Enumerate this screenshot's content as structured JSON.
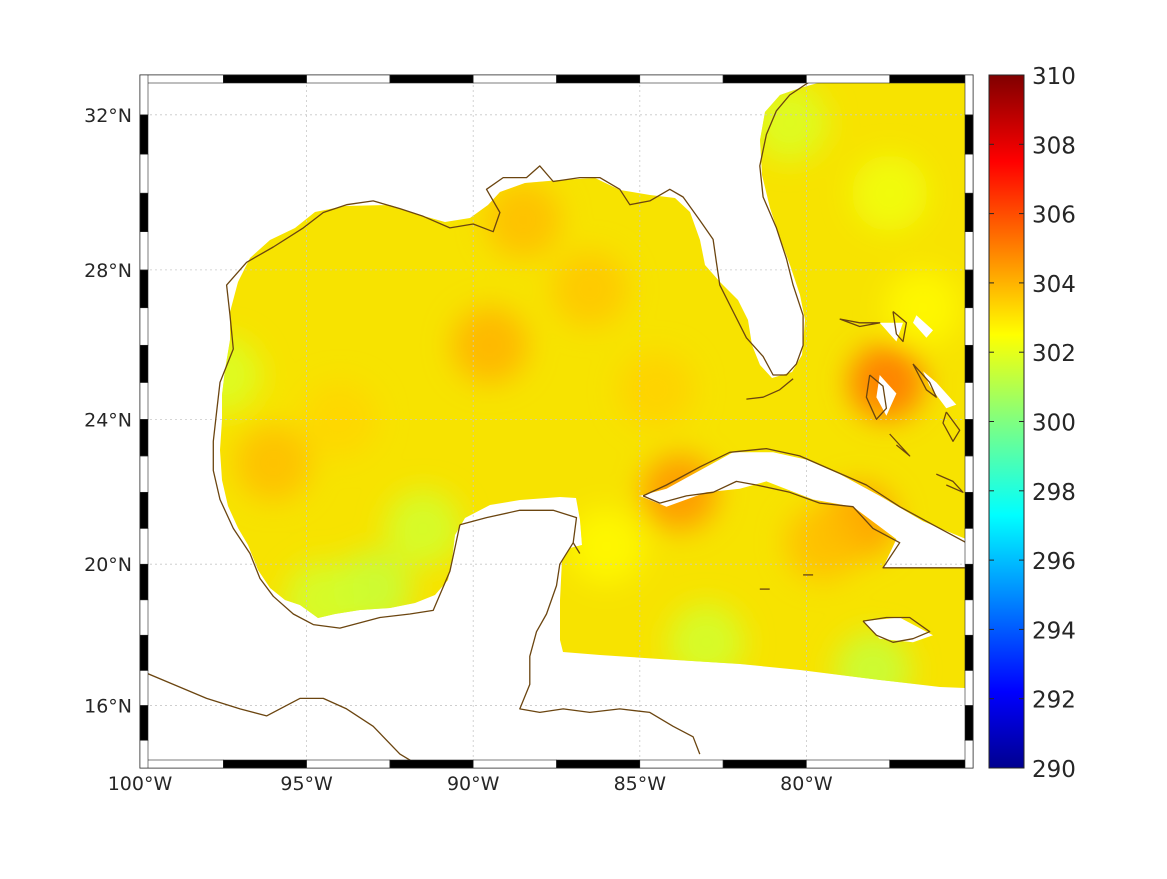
{
  "map": {
    "projection": "Mercator",
    "lon_range": [
      -100,
      -75
    ],
    "lat_range": [
      14.2,
      33
    ],
    "lon_ticks": [
      {
        "value": -100,
        "label": "100°W"
      },
      {
        "value": -95,
        "label": "95°W"
      },
      {
        "value": -90,
        "label": "90°W"
      },
      {
        "value": -85,
        "label": "85°W"
      },
      {
        "value": -80,
        "label": "80°W"
      }
    ],
    "lat_ticks": [
      {
        "value": 16,
        "label": "16°N"
      },
      {
        "value": 20,
        "label": "20°N"
      },
      {
        "value": 24,
        "label": "24°N"
      },
      {
        "value": 28,
        "label": "28°N"
      },
      {
        "value": 32,
        "label": "32°N"
      }
    ],
    "gridlines": true,
    "coastline_color": "#6b4510",
    "field_description": "sea surface temperature field over Gulf of Mexico and Caribbean, mostly 302-304"
  },
  "colorbar": {
    "colormap": "jet",
    "min": 290,
    "max": 310,
    "ticks": [
      {
        "value": 310,
        "label": "310"
      },
      {
        "value": 308,
        "label": "308"
      },
      {
        "value": 306,
        "label": "306"
      },
      {
        "value": 304,
        "label": "304"
      },
      {
        "value": 302,
        "label": "302"
      },
      {
        "value": 300,
        "label": "300"
      },
      {
        "value": 298,
        "label": "298"
      },
      {
        "value": 296,
        "label": "296"
      },
      {
        "value": 294,
        "label": "294"
      },
      {
        "value": 292,
        "label": "292"
      },
      {
        "value": 290,
        "label": "290"
      }
    ]
  },
  "sst_anomaly_spots": [
    {
      "lon": -89.5,
      "lat": 26.0,
      "value": 304.0
    },
    {
      "lon": -88.5,
      "lat": 29.3,
      "value": 303.8
    },
    {
      "lon": -86.5,
      "lat": 27.5,
      "value": 303.6
    },
    {
      "lon": -96.0,
      "lat": 22.8,
      "value": 303.8
    },
    {
      "lon": -94.0,
      "lat": 24.0,
      "value": 303.3
    },
    {
      "lon": -84.5,
      "lat": 24.8,
      "value": 303.4
    },
    {
      "lon": -83.8,
      "lat": 22.0,
      "value": 304.6
    },
    {
      "lon": -77.6,
      "lat": 25.0,
      "value": 305.2
    },
    {
      "lon": -78.4,
      "lat": 21.2,
      "value": 304.4
    },
    {
      "lon": -79.5,
      "lat": 20.6,
      "value": 303.8
    },
    {
      "lon": -91.5,
      "lat": 21.0,
      "value": 301.6
    },
    {
      "lon": -93.0,
      "lat": 19.3,
      "value": 301.4
    },
    {
      "lon": -94.5,
      "lat": 19.0,
      "value": 301.6
    },
    {
      "lon": -97.5,
      "lat": 25.2,
      "value": 301.8
    },
    {
      "lon": -83.0,
      "lat": 17.8,
      "value": 301.6
    },
    {
      "lon": -78.0,
      "lat": 17.0,
      "value": 301.4
    },
    {
      "lon": -80.5,
      "lat": 31.8,
      "value": 301.8
    },
    {
      "lon": -77.5,
      "lat": 30.0,
      "value": 302.2
    },
    {
      "lon": -76.5,
      "lat": 27.0,
      "value": 302.6
    },
    {
      "lon": -86.0,
      "lat": 20.5,
      "value": 302.6
    }
  ]
}
